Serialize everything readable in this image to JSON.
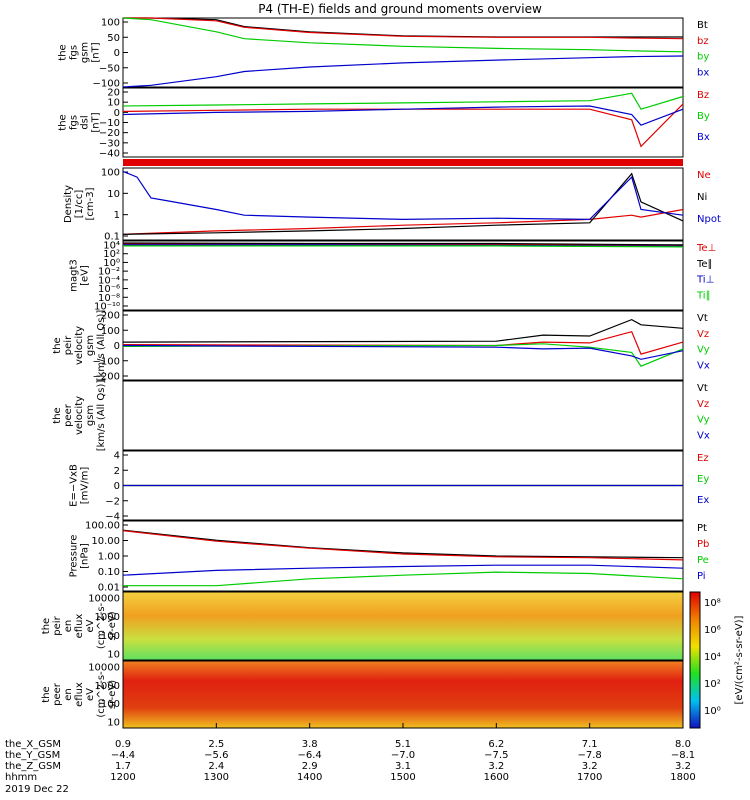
{
  "title": "P4 (TH-E) fields and ground moments overview",
  "colors": {
    "black": "#000000",
    "red": "#e00000",
    "green": "#00cc00",
    "blue": "#0000cc"
  },
  "chart_data": {
    "type": "line",
    "panels": [
      {
        "id": "fgs_gsm",
        "ylabel": [
          "the",
          "fgs",
          "gsm",
          "[nT]"
        ],
        "yticks": [
          "100",
          "50",
          "0",
          "−50",
          "−100"
        ],
        "ylim": [
          -100,
          100
        ],
        "legend": [
          {
            "label": "Bt",
            "color": "black"
          },
          {
            "label": "bz",
            "color": "red"
          },
          {
            "label": "by",
            "color": "green"
          },
          {
            "label": "bx",
            "color": "blue"
          }
        ],
        "series": [
          {
            "name": "Bt",
            "color": "black",
            "x": [
              1200,
              1230,
              1300,
              1330,
              1400,
              1500,
              1600,
              1700,
              1745,
              1800
            ],
            "y": [
              140,
              120,
              95,
              75,
              60,
              48,
              45,
              45,
              45,
              45
            ]
          },
          {
            "name": "bz",
            "color": "red",
            "x": [
              1200,
              1230,
              1300,
              1330,
              1400,
              1500,
              1600,
              1700,
              1745,
              1800
            ],
            "y": [
              140,
              115,
              92,
              73,
              58,
              47,
              44,
              44,
              42,
              40
            ]
          },
          {
            "name": "by",
            "color": "green",
            "x": [
              1200,
              1230,
              1300,
              1330,
              1400,
              1500,
              1600,
              1700,
              1745,
              1800
            ],
            "y": [
              130,
              95,
              60,
              40,
              28,
              18,
              12,
              8,
              5,
              2
            ]
          },
          {
            "name": "bx",
            "color": "blue",
            "x": [
              1200,
              1230,
              1300,
              1330,
              1400,
              1500,
              1600,
              1700,
              1745,
              1800
            ],
            "y": [
              -115,
              -95,
              -70,
              -55,
              -42,
              -30,
              -22,
              -15,
              -12,
              -10
            ]
          }
        ]
      },
      {
        "id": "fgs_dsl",
        "ylabel": [
          "the",
          "fgs",
          "dsl",
          "[nT]"
        ],
        "yticks": [
          "20",
          "10",
          "0",
          "−10",
          "−20",
          "−30",
          "−40"
        ],
        "ylim": [
          -45,
          20
        ],
        "legend": [
          {
            "label": "Bz",
            "color": "red"
          },
          {
            "label": "By",
            "color": "green"
          },
          {
            "label": "Bx",
            "color": "blue"
          }
        ],
        "series": [
          {
            "name": "Bz",
            "color": "red",
            "x": [
              1200,
              1300,
              1400,
              1500,
              1600,
              1700,
              1745,
              1755,
              1800
            ],
            "y": [
              -2,
              -1,
              0,
              0,
              0,
              0,
              -10,
              -35,
              5
            ]
          },
          {
            "name": "By",
            "color": "green",
            "x": [
              1200,
              1300,
              1400,
              1500,
              1600,
              1700,
              1745,
              1755,
              1800
            ],
            "y": [
              3,
              4,
              5,
              6,
              7,
              8,
              15,
              0,
              12
            ]
          },
          {
            "name": "Bx",
            "color": "blue",
            "x": [
              1200,
              1300,
              1400,
              1500,
              1600,
              1700,
              1745,
              1755,
              1800
            ],
            "y": [
              -5,
              -3,
              -2,
              0,
              2,
              3,
              -5,
              -15,
              0
            ]
          }
        ]
      },
      {
        "id": "density",
        "ylabel": [
          "Density",
          "[1/cc]",
          "[cm-3]"
        ],
        "yticks": [
          "100",
          "10",
          "1",
          "0.1"
        ],
        "ylim": [
          0.05,
          300
        ],
        "log": true,
        "legend": [
          {
            "label": "Ne",
            "color": "red"
          },
          {
            "label": "Ni",
            "color": "black"
          },
          {
            "label": "Npot",
            "color": "blue"
          }
        ],
        "series": [
          {
            "name": "Ne",
            "color": "red",
            "x": [
              1200,
              1300,
              1400,
              1500,
              1600,
              1700,
              1745,
              1755,
              1800
            ],
            "y": [
              0.1,
              0.15,
              0.2,
              0.3,
              0.4,
              0.6,
              1.0,
              0.8,
              2
            ]
          },
          {
            "name": "Ni",
            "color": "black",
            "x": [
              1200,
              1300,
              1400,
              1500,
              1600,
              1700,
              1745,
              1755,
              1800
            ],
            "y": [
              0.1,
              0.12,
              0.15,
              0.2,
              0.3,
              0.4,
              150,
              5,
              0.5
            ]
          },
          {
            "name": "Npot",
            "color": "blue",
            "x": [
              1200,
              1215,
              1230,
              1245,
              1300,
              1330,
              1400,
              1500,
              1600,
              1700,
              1745,
              1755,
              1800
            ],
            "y": [
              200,
              100,
              8,
              6,
              2,
              1,
              0.8,
              0.6,
              0.7,
              0.6,
              100,
              2,
              1
            ]
          }
        ]
      },
      {
        "id": "magt3",
        "ylabel": [
          "magt3",
          "[eV]"
        ],
        "yticks": [
          "10⁴",
          "10²",
          "10⁰",
          "10⁻²",
          "10⁻⁴",
          "10⁻⁶",
          "10⁻⁸",
          "10⁻¹⁰"
        ],
        "ylim": [
          -10,
          4
        ],
        "log": true,
        "legend": [
          {
            "label": "Te⊥",
            "color": "red"
          },
          {
            "label": "Te∥",
            "color": "black"
          },
          {
            "label": "Ti⊥",
            "color": "blue"
          },
          {
            "label": "Ti∥",
            "color": "green"
          }
        ],
        "series": [
          {
            "name": "Te⊥",
            "color": "red",
            "x": [
              1200,
              1400,
              1600,
              1800
            ],
            "y": [
              3.4,
              3.3,
              3.3,
              3.0
            ]
          },
          {
            "name": "Te∥",
            "color": "black",
            "x": [
              1200,
              1400,
              1600,
              1800
            ],
            "y": [
              3.6,
              3.5,
              3.5,
              3.2
            ]
          },
          {
            "name": "Ti⊥",
            "color": "blue",
            "x": [
              1200,
              1400,
              1600,
              1800
            ],
            "y": [
              3.2,
              3.2,
              3.1,
              2.9
            ]
          },
          {
            "name": "Ti∥",
            "color": "green",
            "x": [
              1200,
              1400,
              1600,
              1800
            ],
            "y": [
              3.0,
              3.0,
              3.0,
              2.8
            ]
          }
        ]
      },
      {
        "id": "peir_velocity",
        "ylabel": [
          "the",
          "peir",
          "velocity",
          "gsm",
          "[km/s (All Qs)]"
        ],
        "yticks": [
          "200",
          "100",
          "0",
          "−100",
          "−200"
        ],
        "ylim": [
          -200,
          200
        ],
        "legend": [
          {
            "label": "Vt",
            "color": "black"
          },
          {
            "label": "Vz",
            "color": "red"
          },
          {
            "label": "Vy",
            "color": "green"
          },
          {
            "label": "Vx",
            "color": "blue"
          }
        ],
        "series": [
          {
            "name": "Vt",
            "color": "black",
            "x": [
              1200,
              1600,
              1650,
              1700,
              1745,
              1755,
              1800
            ],
            "y": [
              20,
              25,
              60,
              55,
              150,
              120,
              100
            ]
          },
          {
            "name": "Vz",
            "color": "red",
            "x": [
              1200,
              1600,
              1650,
              1700,
              1745,
              1755,
              1800
            ],
            "y": [
              5,
              0,
              20,
              15,
              80,
              -50,
              20
            ]
          },
          {
            "name": "Vy",
            "color": "green",
            "x": [
              1200,
              1600,
              1650,
              1700,
              1745,
              1755,
              1800
            ],
            "y": [
              -5,
              0,
              10,
              -10,
              -40,
              -120,
              -20
            ]
          },
          {
            "name": "Vx",
            "color": "blue",
            "x": [
              1200,
              1600,
              1650,
              1700,
              1745,
              1755,
              1800
            ],
            "y": [
              0,
              -10,
              -20,
              -15,
              -60,
              -80,
              -30
            ]
          }
        ]
      },
      {
        "id": "peer_velocity",
        "ylabel": [
          "the",
          "peer",
          "velocity",
          "gsm",
          "[km/s (All Qs)]"
        ],
        "yticks": [],
        "ylim": [
          -200,
          200
        ],
        "legend": [
          {
            "label": "Vt",
            "color": "black"
          },
          {
            "label": "Vz",
            "color": "red"
          },
          {
            "label": "Vy",
            "color": "green"
          },
          {
            "label": "Vx",
            "color": "blue"
          }
        ],
        "series": []
      },
      {
        "id": "e_vxb",
        "ylabel": [
          "E=−VxB",
          "[mV/m]"
        ],
        "yticks": [
          "4",
          "2",
          "0",
          "−2",
          "−4"
        ],
        "ylim": [
          -4.5,
          4.5
        ],
        "legend": [
          {
            "label": "Ez",
            "color": "red"
          },
          {
            "label": "Ey",
            "color": "green"
          },
          {
            "label": "Ex",
            "color": "blue"
          }
        ],
        "series": [
          {
            "name": "Ez",
            "color": "red",
            "x": [
              1200,
              1300,
              1400,
              1500,
              1600,
              1700,
              1800
            ],
            "y": [
              0,
              0,
              0,
              0,
              0,
              0,
              0
            ]
          },
          {
            "name": "Ey",
            "color": "green",
            "x": [
              1200,
              1300,
              1400,
              1500,
              1600,
              1700,
              1800
            ],
            "y": [
              0,
              0,
              0,
              0,
              0,
              0,
              0
            ]
          },
          {
            "name": "Ex",
            "color": "blue",
            "x": [
              1200,
              1300,
              1400,
              1500,
              1600,
              1700,
              1800
            ],
            "y": [
              0,
              0,
              0,
              0,
              0,
              0,
              0
            ]
          }
        ]
      },
      {
        "id": "pressure",
        "ylabel": [
          "Pressure",
          "[nPa]"
        ],
        "yticks": [
          "100.00",
          "10.00",
          "1.00",
          "0.10",
          "0.01"
        ],
        "ylim": [
          0.01,
          100
        ],
        "log": true,
        "legend": [
          {
            "label": "Pt",
            "color": "black"
          },
          {
            "label": "Pb",
            "color": "red"
          },
          {
            "label": "Pe",
            "color": "green"
          },
          {
            "label": "Pi",
            "color": "blue"
          }
        ],
        "series": [
          {
            "name": "Pt",
            "color": "black",
            "x": [
              1200,
              1300,
              1400,
              1500,
              1600,
              1700,
              1800
            ],
            "y": [
              30,
              8,
              3,
              1.5,
              1.0,
              0.9,
              0.8
            ]
          },
          {
            "name": "Pb",
            "color": "red",
            "x": [
              1200,
              1300,
              1400,
              1500,
              1600,
              1700,
              1800
            ],
            "y": [
              28,
              7,
              2.8,
              1.3,
              0.9,
              0.8,
              0.6
            ]
          },
          {
            "name": "Pe",
            "color": "green",
            "x": [
              1200,
              1300,
              1400,
              1500,
              1600,
              1700,
              1800
            ],
            "y": [
              0.02,
              0.02,
              0.05,
              0.08,
              0.12,
              0.1,
              0.05
            ]
          },
          {
            "name": "Pi",
            "color": "blue",
            "x": [
              1200,
              1300,
              1400,
              1500,
              1600,
              1700,
              1800
            ],
            "y": [
              0.08,
              0.15,
              0.2,
              0.25,
              0.3,
              0.3,
              0.2
            ]
          }
        ]
      }
    ],
    "spectrograms": [
      {
        "id": "peir_en_eflux",
        "ylabel": [
          "the",
          "peir",
          "en",
          "eflux",
          "eV",
          "(cm^2-s-",
          "sr-eV)"
        ],
        "yticks": [
          "10000",
          "1000",
          "100",
          "10"
        ]
      },
      {
        "id": "peer_en_eflux",
        "ylabel": [
          "the",
          "peer",
          "en",
          "eflux",
          "eV",
          "(cm^2-s-",
          "sr-eV)"
        ],
        "yticks": [
          "10000",
          "1000",
          "100",
          "10"
        ]
      }
    ],
    "colorbar": {
      "ticks": [
        "10⁸",
        "10⁶",
        "10⁴",
        "10²",
        "10⁰"
      ],
      "label": "[eV/(cm²-s-sr-eV)]"
    },
    "x_axis": {
      "rows": [
        {
          "label": "the_X_GSM",
          "values": [
            "0.9",
            "2.5",
            "3.8",
            "5.1",
            "6.2",
            "7.1",
            "8.0"
          ]
        },
        {
          "label": "the_Y_GSM",
          "values": [
            "−4.4",
            "−5.6",
            "−6.4",
            "−7.0",
            "−7.5",
            "−7.8",
            "−8.1"
          ]
        },
        {
          "label": "the_Z_GSM",
          "values": [
            "1.7",
            "2.4",
            "2.9",
            "3.1",
            "3.2",
            "3.2",
            "3.2"
          ]
        },
        {
          "label": "hhmm",
          "values": [
            "1200",
            "1300",
            "1400",
            "1500",
            "1600",
            "1700",
            "1800"
          ]
        }
      ],
      "date": "2019 Dec 22",
      "xlim": [
        1200,
        1800
      ]
    }
  }
}
